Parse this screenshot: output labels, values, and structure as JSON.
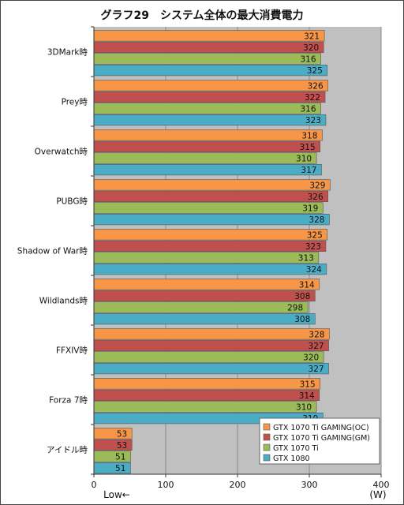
{
  "chart_data": {
    "type": "bar",
    "orientation": "horizontal",
    "title": "グラフ29　システム全体の最大消費電力",
    "categories": [
      "3DMark時",
      "Prey時",
      "Overwatch時",
      "PUBG時",
      "Shadow of War時",
      "Wildlands時",
      "FFXIV時",
      "Forza 7時",
      "アイドル時"
    ],
    "series": [
      {
        "name": "GTX 1070 Ti GAMING(OC)",
        "color": "#f79646",
        "values": [
          321,
          326,
          318,
          329,
          325,
          314,
          328,
          315,
          53
        ]
      },
      {
        "name": "GTX 1070 Ti GAMING(GM)",
        "color": "#c0504d",
        "values": [
          320,
          322,
          315,
          326,
          323,
          308,
          327,
          314,
          53
        ]
      },
      {
        "name": "GTX 1070 Ti",
        "color": "#9bbb59",
        "values": [
          316,
          316,
          310,
          319,
          313,
          298,
          320,
          310,
          51
        ]
      },
      {
        "name": "GTX 1080",
        "color": "#4bacc6",
        "values": [
          325,
          323,
          317,
          328,
          324,
          308,
          327,
          319,
          51
        ]
      }
    ],
    "xlim": [
      0,
      400
    ],
    "xticks": [
      0,
      100,
      200,
      300,
      400
    ],
    "xtick_labels": [
      "0",
      "100",
      "200",
      "300",
      "400"
    ],
    "unit_label": "(W)",
    "low_label": "Low←",
    "grid": true,
    "legend_position": "bottom-right",
    "plot_background": "#c0c0c0"
  }
}
